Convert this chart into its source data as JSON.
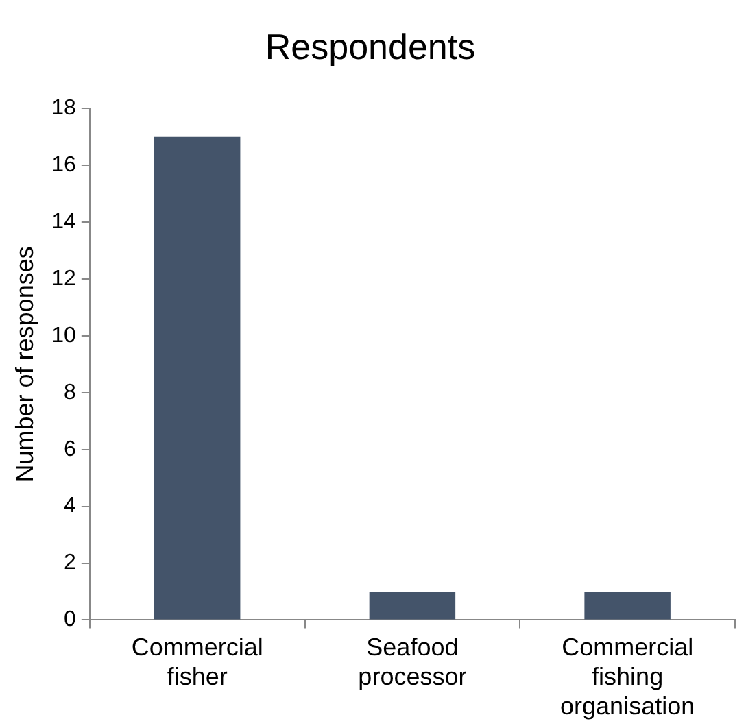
{
  "chart_data": {
    "type": "bar",
    "title": "Respondents",
    "ylabel": "Number of responses",
    "categories": [
      "Commercial fisher",
      "Seafood processor",
      "Commercial fishing organisation"
    ],
    "values": [
      17,
      1,
      1
    ],
    "color": "#44546a",
    "ylim": [
      0,
      18
    ],
    "yticks": [
      0,
      2,
      4,
      6,
      8,
      10,
      12,
      14,
      16,
      18
    ],
    "grid": false,
    "legend": false
  }
}
